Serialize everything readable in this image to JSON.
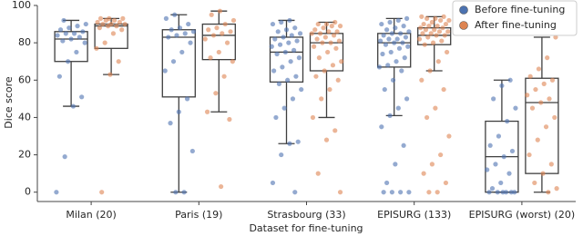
{
  "chart_data": {
    "type": "box",
    "ylabel": "Dice score",
    "xlabel": "Dataset for fine-tuning",
    "categories": [
      "Milan (20)",
      "Paris (19)",
      "Strasbourg (33)",
      "EPISURG (133)",
      "EPISURG (worst) (20)"
    ],
    "ylim": [
      -5,
      100
    ],
    "yticks": [
      0,
      20,
      40,
      60,
      80,
      100
    ],
    "legend": "upper right",
    "series": [
      {
        "name": "Before fine-tuning",
        "color": "#4c72b0",
        "boxes": [
          {
            "whislo": 46,
            "q1": 70,
            "med": 82,
            "q3": 86,
            "whishi": 92
          },
          {
            "whislo": 0,
            "q1": 51,
            "med": 83,
            "q3": 87,
            "whishi": 95
          },
          {
            "whislo": 26,
            "q1": 59,
            "med": 75,
            "q3": 83,
            "whishi": 92
          },
          {
            "whislo": 41,
            "q1": 67,
            "med": 80,
            "q3": 85,
            "whishi": 93
          },
          {
            "whislo": 0,
            "q1": 0,
            "med": 19,
            "q3": 38,
            "whishi": 60
          }
        ],
        "points": [
          [
            0,
            19,
            46,
            51,
            62,
            70,
            75,
            80,
            81,
            82,
            83,
            84,
            85,
            85,
            86,
            87,
            88,
            89,
            90,
            92
          ],
          [
            0,
            0,
            22,
            37,
            43,
            50,
            65,
            70,
            75,
            80,
            83,
            84,
            85,
            86,
            87,
            88,
            90,
            93,
            95
          ],
          [
            0,
            5,
            20,
            26,
            27,
            40,
            45,
            50,
            55,
            58,
            60,
            62,
            65,
            67,
            70,
            72,
            74,
            75,
            76,
            78,
            79,
            80,
            81,
            82,
            83,
            84,
            85,
            86,
            87,
            88,
            90,
            91,
            92
          ],
          [
            0,
            0,
            0,
            0,
            5,
            15,
            25,
            35,
            41,
            45,
            50,
            55,
            60,
            65,
            67,
            68,
            70,
            72,
            74,
            75,
            77,
            78,
            79,
            80,
            80,
            81,
            82,
            82,
            83,
            84,
            85,
            85,
            86,
            87,
            88,
            89,
            90,
            91,
            92,
            93
          ],
          [
            0,
            0,
            0,
            0,
            0,
            0,
            2,
            5,
            10,
            12,
            15,
            19,
            22,
            25,
            30,
            38,
            45,
            50,
            57,
            60
          ]
        ]
      },
      {
        "name": "After fine-tuning",
        "color": "#dd8452",
        "boxes": [
          {
            "whislo": 63,
            "q1": 77,
            "med": 89,
            "q3": 90,
            "whishi": 93
          },
          {
            "whislo": 43,
            "q1": 71,
            "med": 84,
            "q3": 90,
            "whishi": 97
          },
          {
            "whislo": 40,
            "q1": 65,
            "med": 80,
            "q3": 85,
            "whishi": 91
          },
          {
            "whislo": 65,
            "q1": 79,
            "med": 84,
            "q3": 88,
            "whishi": 94
          },
          {
            "whislo": 0,
            "q1": 10,
            "med": 48,
            "q3": 61,
            "whishi": 83
          }
        ],
        "points": [
          [
            0,
            63,
            70,
            77,
            80,
            85,
            87,
            88,
            89,
            89,
            90,
            90,
            90,
            91,
            91,
            92,
            92,
            93,
            93,
            93
          ],
          [
            3,
            39,
            43,
            53,
            62,
            70,
            72,
            75,
            80,
            82,
            84,
            85,
            86,
            87,
            88,
            90,
            92,
            95,
            97
          ],
          [
            0,
            10,
            28,
            33,
            40,
            50,
            55,
            60,
            62,
            65,
            68,
            70,
            72,
            75,
            77,
            78,
            80,
            80,
            81,
            82,
            83,
            84,
            85,
            85,
            86,
            86,
            87,
            88,
            89,
            89,
            90,
            90,
            91
          ],
          [
            0,
            0,
            5,
            10,
            15,
            20,
            30,
            40,
            45,
            55,
            60,
            65,
            70,
            75,
            79,
            80,
            81,
            82,
            83,
            84,
            84,
            85,
            85,
            86,
            86,
            87,
            87,
            88,
            88,
            89,
            89,
            90,
            90,
            91,
            92,
            92,
            93,
            93,
            94,
            94
          ],
          [
            0,
            2,
            5,
            10,
            15,
            20,
            28,
            35,
            40,
            45,
            48,
            50,
            52,
            55,
            58,
            60,
            62,
            66,
            72,
            83
          ]
        ]
      }
    ]
  }
}
